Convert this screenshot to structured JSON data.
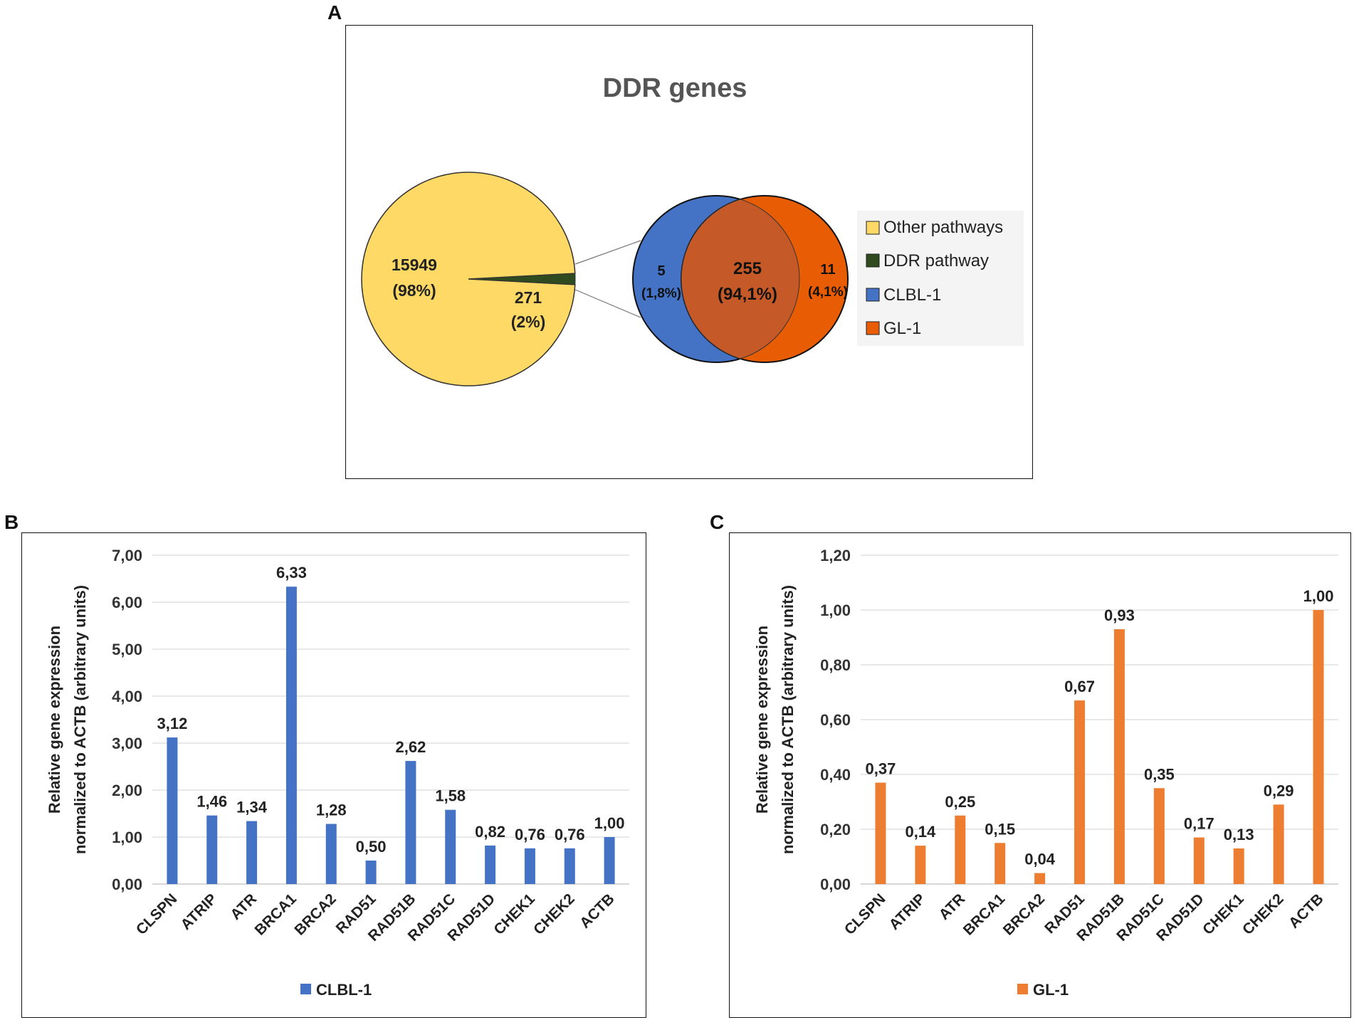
{
  "panels": {
    "a": "A",
    "b": "B",
    "c": "C"
  },
  "chart_data": [
    {
      "panel": "A",
      "type": "pie",
      "title": "DDR genes",
      "pie": {
        "slices": [
          {
            "label": "Other pathways",
            "value": 15949,
            "value_text": "15949",
            "percent_text": "(98%)",
            "color": "#FFD966"
          },
          {
            "label": "DDR pathway",
            "value": 271,
            "value_text": "271",
            "percent_text": "(2%)",
            "color": "#2E4A1E"
          }
        ]
      },
      "venn": {
        "left_only": {
          "value_text": "5",
          "percent_text": "(1,8%)",
          "color": "#4472C4"
        },
        "overlap": {
          "value_text": "255",
          "percent_text": "(94,1%)",
          "color": "#C55A28"
        },
        "right_only": {
          "value_text": "11",
          "percent_text": "(4,1%)",
          "color": "#E85D04"
        }
      },
      "legend": [
        {
          "label": "Other pathways",
          "color": "#FFD966"
        },
        {
          "label": "DDR pathway",
          "color": "#2E4A1E"
        },
        {
          "label": "CLBL-1",
          "color": "#4472C4"
        },
        {
          "label": "GL-1",
          "color": "#E85D04"
        }
      ]
    },
    {
      "panel": "B",
      "type": "bar",
      "categories": [
        "CLSPN",
        "ATRIP",
        "ATR",
        "BRCA1",
        "BRCA2",
        "RAD51",
        "RAD51B",
        "RAD51C",
        "RAD51D",
        "CHEK1",
        "CHEK2",
        "ACTB"
      ],
      "values": [
        3.12,
        1.46,
        1.34,
        6.33,
        1.28,
        0.5,
        2.62,
        1.58,
        0.82,
        0.76,
        0.76,
        1.0
      ],
      "value_labels": [
        "3,12",
        "1,46",
        "1,34",
        "6,33",
        "1,28",
        "0,50",
        "2,62",
        "1,58",
        "0,82",
        "0,76",
        "0,76",
        "1,00"
      ],
      "ylim": [
        0,
        7
      ],
      "yticks": [
        0,
        1,
        2,
        3,
        4,
        5,
        6,
        7
      ],
      "ytick_labels": [
        "0,00",
        "1,00",
        "2,00",
        "3,00",
        "4,00",
        "5,00",
        "6,00",
        "7,00"
      ],
      "ylabel_line1": "Relative gene expression",
      "ylabel_line2": "normalized to ACTB (arbitrary units)",
      "legend": "CLBL-1",
      "color": "#4472C4",
      "grid": true
    },
    {
      "panel": "C",
      "type": "bar",
      "categories": [
        "CLSPN",
        "ATRIP",
        "ATR",
        "BRCA1",
        "BRCA2",
        "RAD51",
        "RAD51B",
        "RAD51C",
        "RAD51D",
        "CHEK1",
        "CHEK2",
        "ACTB"
      ],
      "values": [
        0.37,
        0.14,
        0.25,
        0.15,
        0.04,
        0.67,
        0.93,
        0.35,
        0.17,
        0.13,
        0.29,
        1.0
      ],
      "value_labels": [
        "0,37",
        "0,14",
        "0,25",
        "0,15",
        "0,04",
        "0,67",
        "0,93",
        "0,35",
        "0,17",
        "0,13",
        "0,29",
        "1,00"
      ],
      "ylim": [
        0,
        1.2
      ],
      "yticks": [
        0,
        0.2,
        0.4,
        0.6,
        0.8,
        1.0,
        1.2
      ],
      "ytick_labels": [
        "0,00",
        "0,20",
        "0,40",
        "0,60",
        "0,80",
        "1,00",
        "1,20"
      ],
      "ylabel_line1": "Relative gene expression",
      "ylabel_line2": "normalized to ACTB (arbitrary units)",
      "legend": "GL-1",
      "color": "#ED7D31",
      "grid": true
    }
  ]
}
